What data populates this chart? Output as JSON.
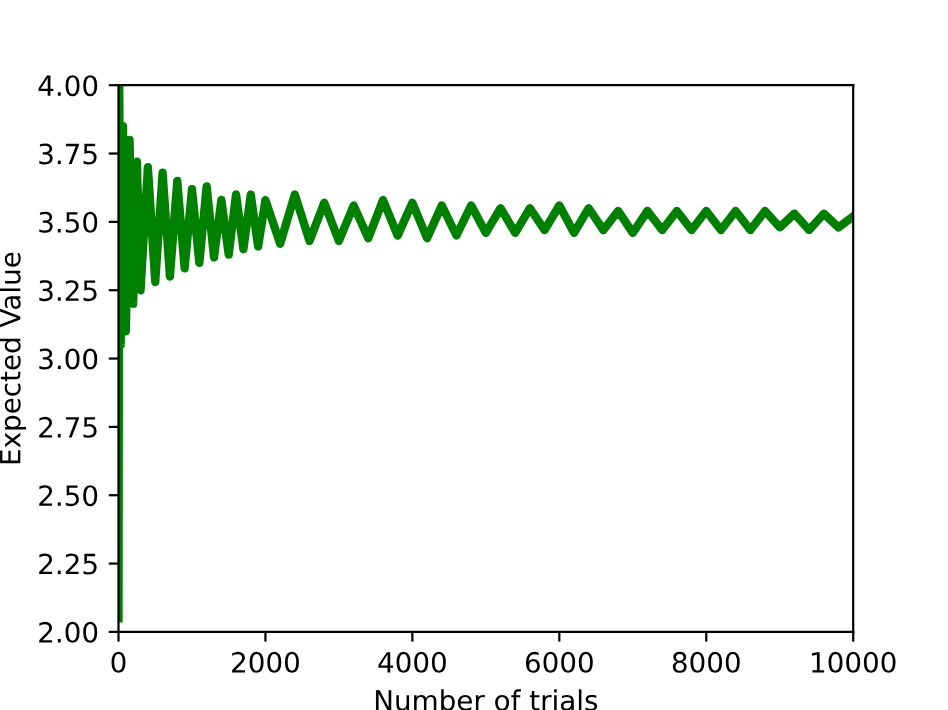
{
  "chart_data": {
    "type": "line",
    "xlabel": "Number of trials",
    "ylabel": "Expected Value",
    "series": [
      {
        "color": "#008000",
        "x": [
          0,
          10,
          30,
          60,
          100,
          150,
          200,
          250,
          300,
          400,
          500,
          600,
          700,
          800,
          900,
          1000,
          1100,
          1200,
          1300,
          1400,
          1500,
          1600,
          1700,
          1800,
          1900,
          2000,
          2200,
          2400,
          2600,
          2800,
          3000,
          3200,
          3400,
          3600,
          3800,
          4000,
          4200,
          4400,
          4600,
          4800,
          5000,
          5200,
          5400,
          5600,
          5800,
          6000,
          6200,
          6400,
          6600,
          6800,
          7000,
          7200,
          7400,
          7600,
          7800,
          8000,
          8200,
          8400,
          8600,
          8800,
          9000,
          9200,
          9400,
          9600,
          9800,
          10000
        ],
        "values": [
          2.05,
          4.0,
          3.05,
          3.85,
          3.1,
          3.8,
          3.2,
          3.72,
          3.25,
          3.7,
          3.28,
          3.68,
          3.3,
          3.65,
          3.33,
          3.62,
          3.35,
          3.63,
          3.37,
          3.58,
          3.38,
          3.6,
          3.4,
          3.6,
          3.41,
          3.58,
          3.42,
          3.6,
          3.43,
          3.57,
          3.43,
          3.56,
          3.44,
          3.58,
          3.45,
          3.57,
          3.44,
          3.56,
          3.45,
          3.56,
          3.46,
          3.55,
          3.46,
          3.55,
          3.47,
          3.56,
          3.46,
          3.55,
          3.47,
          3.54,
          3.46,
          3.54,
          3.47,
          3.54,
          3.47,
          3.54,
          3.47,
          3.54,
          3.47,
          3.54,
          3.48,
          3.53,
          3.47,
          3.53,
          3.48,
          3.52
        ]
      }
    ],
    "xlim": [
      0,
      10000
    ],
    "xticks": [
      0,
      2000,
      4000,
      6000,
      8000,
      10000
    ],
    "ylim": [
      2.0,
      4.0
    ],
    "yticks": [
      {
        "value": 2.0,
        "label": "2.00"
      },
      {
        "value": 2.25,
        "label": "2.25"
      },
      {
        "value": 2.5,
        "label": "2.50"
      },
      {
        "value": 2.75,
        "label": "2.75"
      },
      {
        "value": 3.0,
        "label": "3.00"
      },
      {
        "value": 3.25,
        "label": "3.25"
      },
      {
        "value": 3.5,
        "label": "3.50"
      },
      {
        "value": 3.75,
        "label": "3.75"
      },
      {
        "value": 4.0,
        "label": "4.00"
      }
    ],
    "line_style": "solid"
  }
}
